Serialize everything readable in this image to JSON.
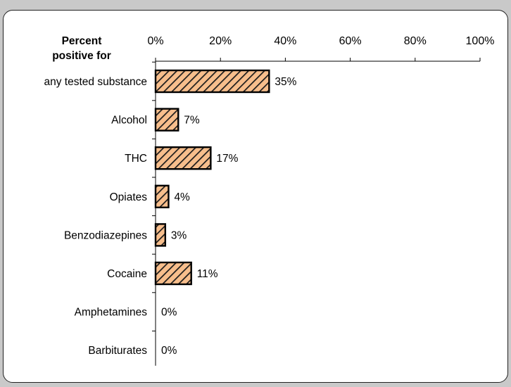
{
  "page": {
    "caption_fragment": "",
    "background": "#c9c9c9"
  },
  "chart_data": {
    "type": "bar",
    "orientation": "horizontal",
    "title": "",
    "category_header": [
      "Percent",
      "positive for"
    ],
    "categories": [
      "any tested substance",
      "Alcohol",
      "THC",
      "Opiates",
      "Benzodiazepines",
      "Cocaine",
      "Amphetamines",
      "Barbiturates"
    ],
    "values": [
      35,
      7,
      17,
      4,
      3,
      11,
      0,
      0
    ],
    "value_labels": [
      "35%",
      "7%",
      "17%",
      "4%",
      "3%",
      "11%",
      "0%",
      "0%"
    ],
    "xlim": [
      0,
      100
    ],
    "x_ticks": [
      0,
      20,
      40,
      60,
      80,
      100
    ],
    "x_tick_labels": [
      "0%",
      "20%",
      "40%",
      "60%",
      "80%",
      "100%"
    ],
    "x_axis_position": "top",
    "grid": false,
    "legend": "none",
    "bar_fill": "#f7be8c",
    "bar_hatch": "#1a1a1a",
    "bar_edge": "#000000"
  }
}
